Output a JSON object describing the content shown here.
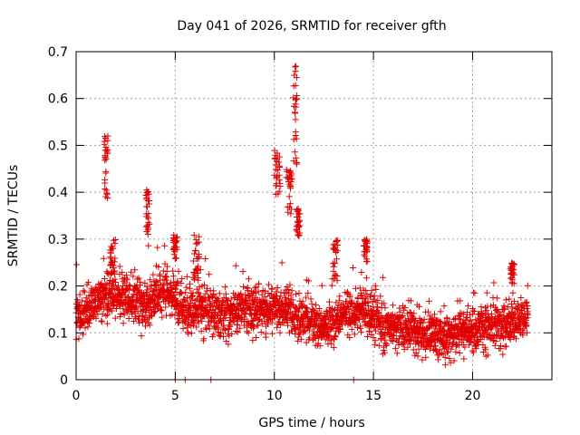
{
  "chart_data": {
    "type": "scatter",
    "title": "Day 041 of 2026, SRMTID for receiver gfth",
    "xlabel": "GPS time / hours",
    "ylabel": "SRMTID / TECUs",
    "xlim": [
      0,
      24
    ],
    "ylim": [
      0,
      0.7
    ],
    "x_ticks": [
      0,
      5,
      10,
      15,
      20
    ],
    "y_ticks": [
      0,
      0.1,
      0.2,
      0.3,
      0.4,
      0.5,
      0.6,
      0.7
    ],
    "x_tick_labels": [
      "0",
      "5",
      "10",
      "15",
      "20"
    ],
    "y_tick_labels": [
      "0",
      "0.1",
      "0.2",
      "0.3",
      "0.4",
      "0.5",
      "0.6",
      "0.7"
    ],
    "grid": true,
    "marker": "+",
    "color": "#e00000",
    "baseline": {
      "x": [
        0.0,
        1.5,
        2.5,
        3.5,
        4.5,
        5.5,
        6.5,
        7.5,
        8.5,
        9.5,
        10.5,
        11.5,
        12.5,
        13.5,
        14.5,
        15.5,
        16.5,
        17.5,
        18.5,
        19.5,
        20.5,
        21.5,
        22.8
      ],
      "y": [
        0.13,
        0.18,
        0.17,
        0.16,
        0.19,
        0.15,
        0.15,
        0.14,
        0.15,
        0.15,
        0.15,
        0.13,
        0.11,
        0.13,
        0.16,
        0.11,
        0.11,
        0.1,
        0.09,
        0.1,
        0.11,
        0.11,
        0.14
      ]
    },
    "spikes": [
      {
        "x": [
          1.4,
          1.6
        ],
        "y": [
          0.37,
          0.52
        ]
      },
      {
        "x": [
          1.7,
          2.0
        ],
        "y": [
          0.22,
          0.3
        ]
      },
      {
        "x": [
          3.5,
          3.7
        ],
        "y": [
          0.28,
          0.41
        ]
      },
      {
        "x": [
          4.9,
          5.1
        ],
        "y": [
          0.25,
          0.31
        ]
      },
      {
        "x": [
          5.9,
          6.2
        ],
        "y": [
          0.2,
          0.31
        ]
      },
      {
        "x": [
          10.0,
          10.3
        ],
        "y": [
          0.38,
          0.49
        ]
      },
      {
        "x": [
          10.6,
          10.9
        ],
        "y": [
          0.35,
          0.45
        ]
      },
      {
        "x": [
          10.95,
          11.15
        ],
        "y": [
          0.45,
          0.68
        ]
      },
      {
        "x": [
          11.1,
          11.3
        ],
        "y": [
          0.3,
          0.37
        ]
      },
      {
        "x": [
          12.9,
          13.2
        ],
        "y": [
          0.2,
          0.3
        ]
      },
      {
        "x": [
          14.5,
          14.7
        ],
        "y": [
          0.25,
          0.3
        ]
      },
      {
        "x": [
          21.9,
          22.1
        ],
        "y": [
          0.2,
          0.25
        ]
      }
    ],
    "zero_points": [
      {
        "x": 5.0,
        "y": 0
      },
      {
        "x": 5.5,
        "y": 0
      },
      {
        "x": 6.8,
        "y": 0
      },
      {
        "x": 14.0,
        "y": 0
      }
    ],
    "x_end": 22.8
  }
}
